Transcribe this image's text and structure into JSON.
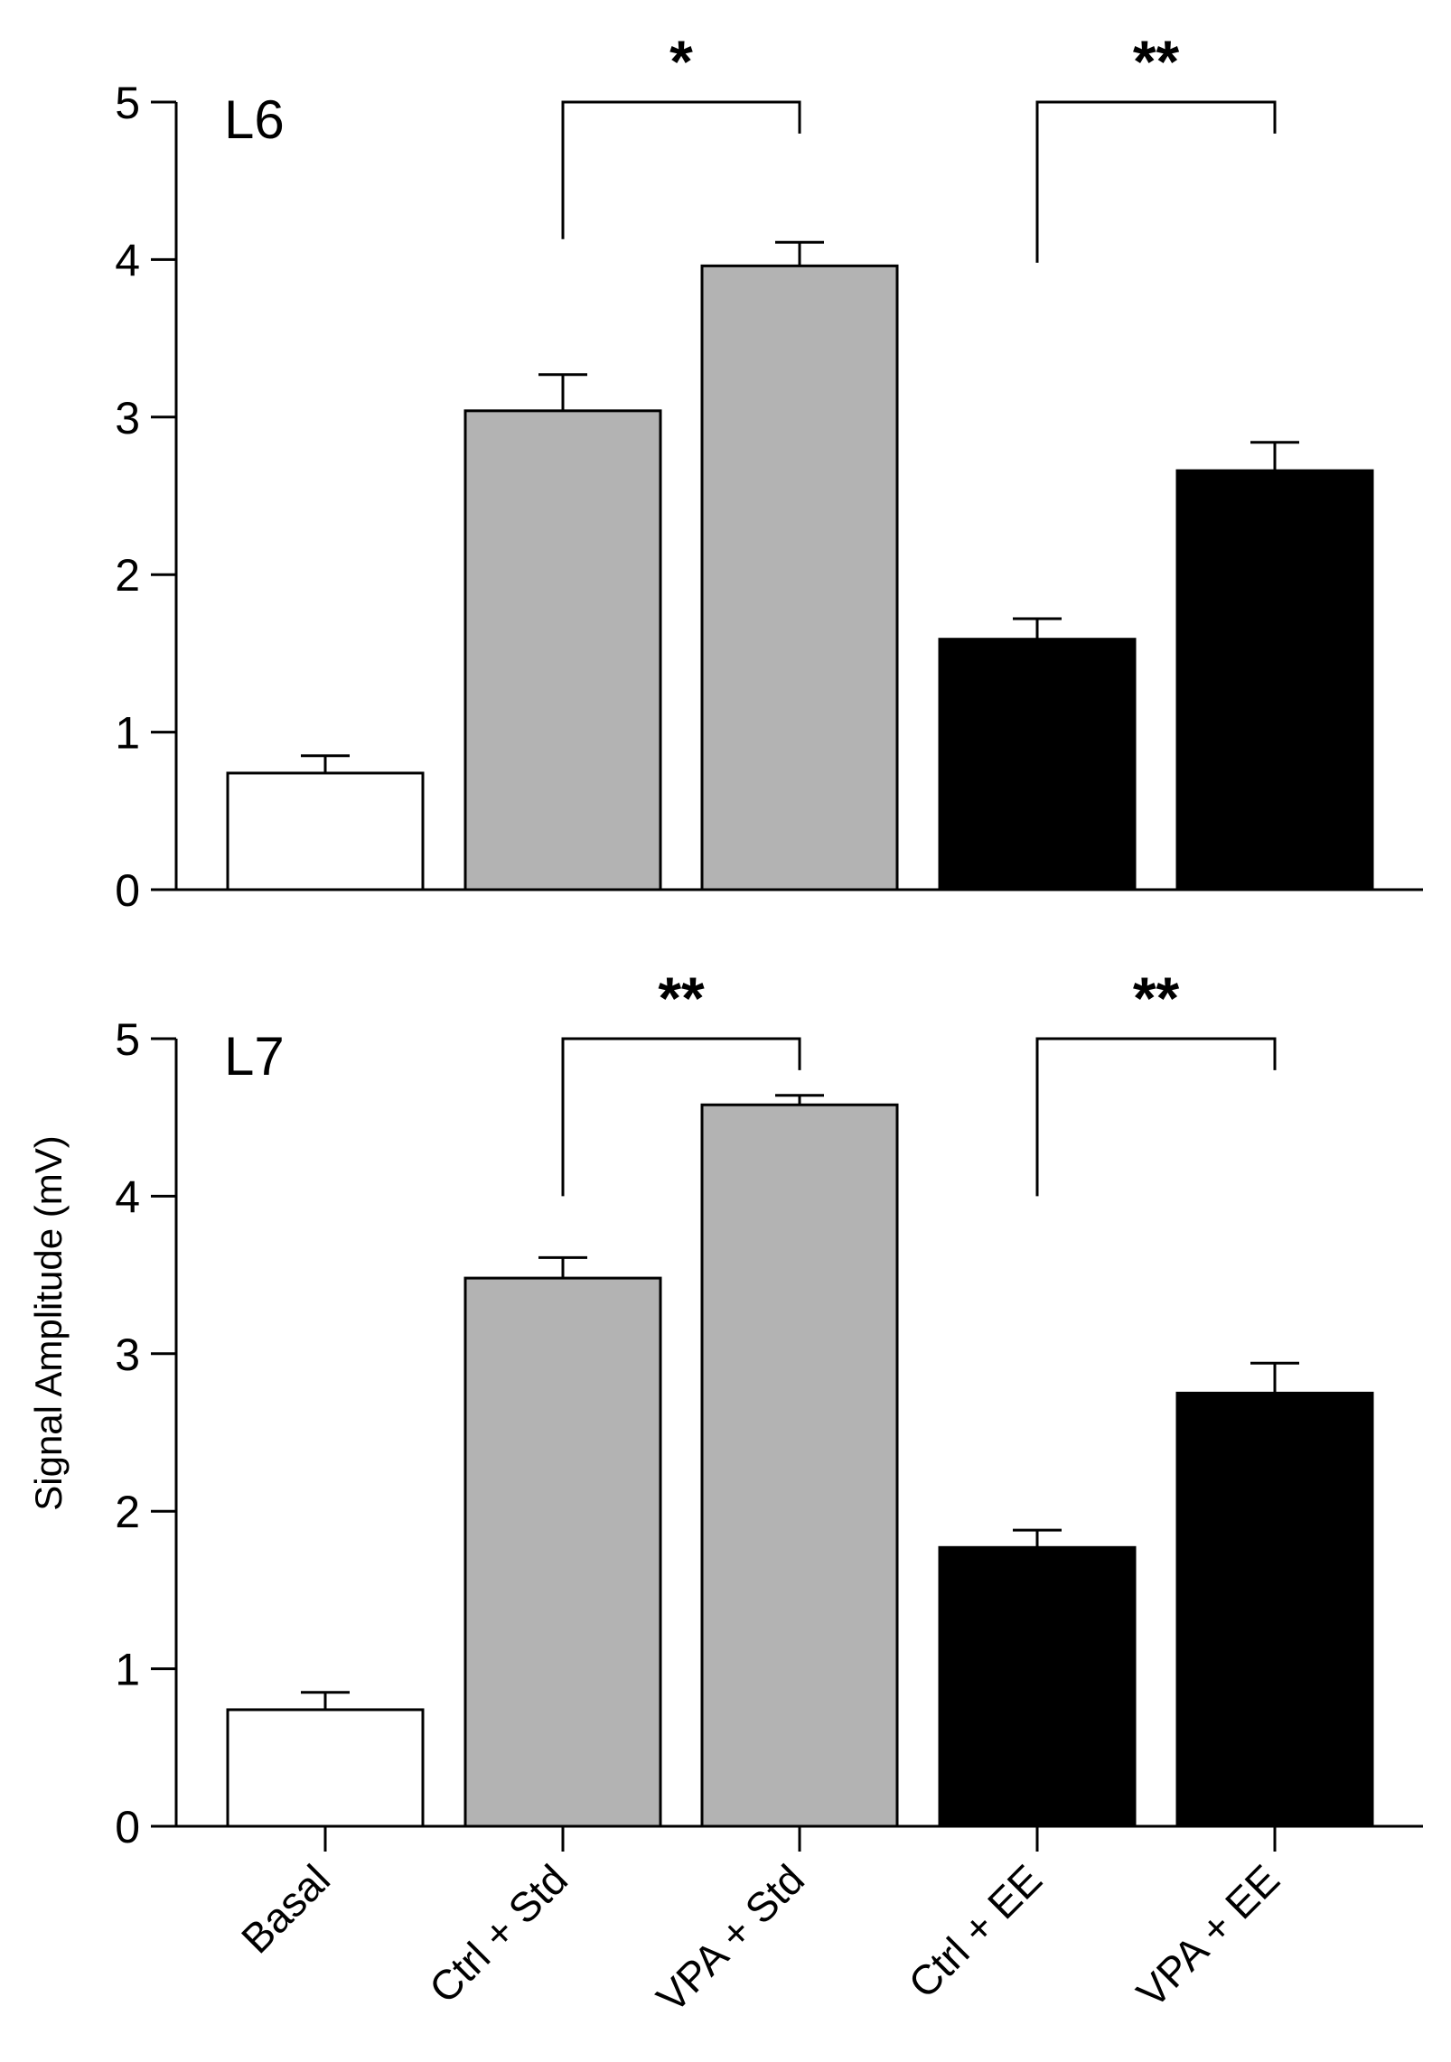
{
  "chart_data": [
    {
      "type": "bar",
      "panel_label": "L6",
      "categories": [
        "Basal",
        "Ctrl + Std",
        "VPA + Std",
        "Ctrl + EE",
        "VPA + EE"
      ],
      "values": [
        0.74,
        3.04,
        3.96,
        1.59,
        2.66
      ],
      "errors": [
        0.11,
        0.23,
        0.15,
        0.13,
        0.18
      ],
      "colors": [
        "#ffffff",
        "#b3b3b3",
        "#b3b3b3",
        "#000000",
        "#000000"
      ],
      "ylim": [
        0,
        5
      ],
      "yticks": [
        "0",
        "1",
        "2",
        "3",
        "4",
        "5"
      ],
      "significance": [
        {
          "from": 1,
          "to": 2,
          "label": "*",
          "left_drop": 4.13,
          "right_drop": 4.8
        },
        {
          "from": 3,
          "to": 4,
          "label": "**",
          "left_drop": 3.98,
          "right_drop": 4.8
        }
      ]
    },
    {
      "type": "bar",
      "panel_label": "L7",
      "categories": [
        "Basal",
        "Ctrl + Std",
        "VPA + Std",
        "Ctrl + EE",
        "VPA + EE"
      ],
      "values": [
        0.74,
        3.48,
        4.58,
        1.77,
        2.75
      ],
      "errors": [
        0.11,
        0.13,
        0.06,
        0.11,
        0.19
      ],
      "colors": [
        "#ffffff",
        "#b3b3b3",
        "#b3b3b3",
        "#000000",
        "#000000"
      ],
      "ylim": [
        0,
        5
      ],
      "yticks": [
        "0",
        "1",
        "2",
        "3",
        "4",
        "5"
      ],
      "significance": [
        {
          "from": 1,
          "to": 2,
          "label": "**",
          "left_drop": 4.0,
          "right_drop": 4.8
        },
        {
          "from": 3,
          "to": 4,
          "label": "**",
          "left_drop": 4.0,
          "right_drop": 4.8
        }
      ]
    }
  ],
  "ylabel": "Signal Amplitude (mV)"
}
